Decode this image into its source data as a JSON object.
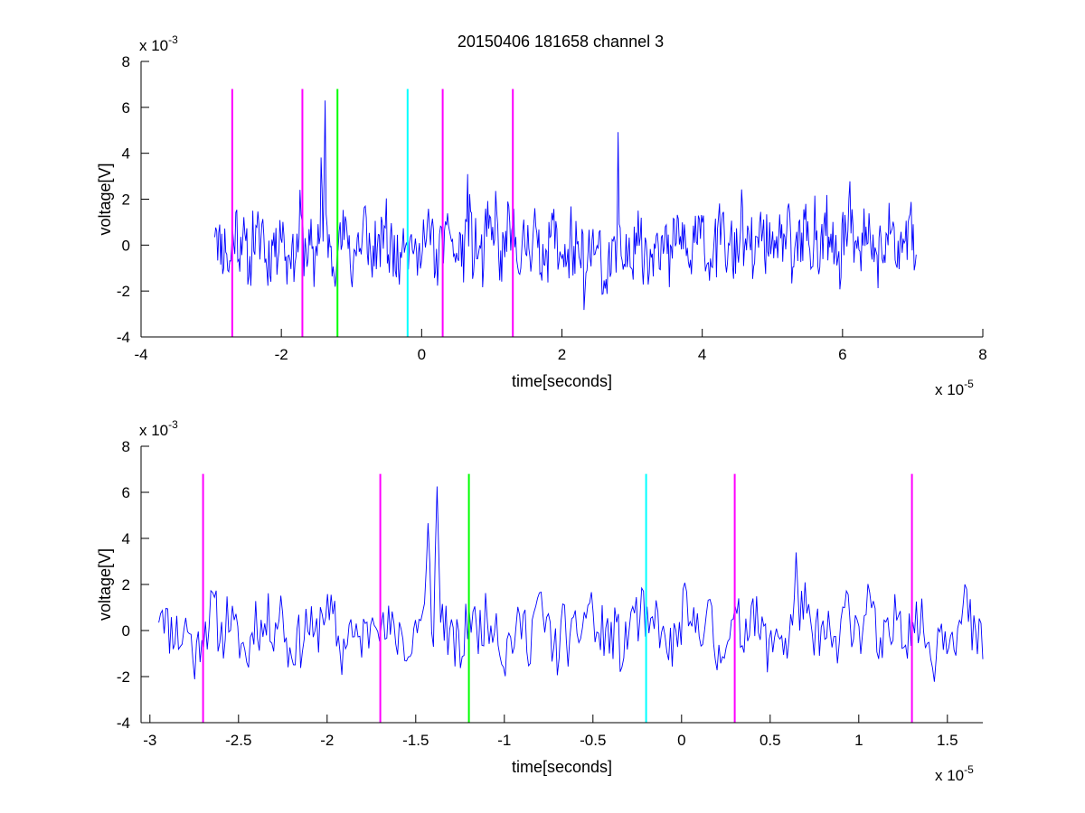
{
  "figure": {
    "title": "20150406 181658 channel 3"
  },
  "chart_data": [
    {
      "type": "line",
      "title": "20150406 181658 channel 3",
      "xlabel": "time[seconds]",
      "ylabel": "voltage[V]",
      "x_multiplier_base": "x 10",
      "x_multiplier_exp": "-5",
      "y_multiplier_base": "x 10",
      "y_multiplier_exp": "-3",
      "xlim": [
        -4,
        8
      ],
      "ylim": [
        -4,
        8
      ],
      "x_ticks": [
        -4,
        -2,
        0,
        2,
        4,
        6,
        8
      ],
      "x_tick_labels": [
        "-4",
        "-2",
        "0",
        "2",
        "4",
        "6",
        "8"
      ],
      "y_ticks": [
        -4,
        -2,
        0,
        2,
        4,
        6,
        8
      ],
      "y_tick_labels": [
        "-4",
        "-2",
        "0",
        "2",
        "4",
        "6",
        "8"
      ],
      "grid": false,
      "signal": {
        "color": "#0000ff",
        "x_start": -2.95,
        "x_end": 7.05,
        "samples": 700,
        "seed": 11
      },
      "markers": [
        {
          "x": -2.7,
          "color": "#ff00ff",
          "y_top": 6.8
        },
        {
          "x": -1.7,
          "color": "#ff00ff",
          "y_top": 6.8
        },
        {
          "x": -1.2,
          "color": "#00ff00",
          "y_top": 6.8
        },
        {
          "x": -0.2,
          "color": "#00ffff",
          "y_top": 6.8
        },
        {
          "x": 0.3,
          "color": "#ff00ff",
          "y_top": 6.8
        },
        {
          "x": 1.3,
          "color": "#ff00ff",
          "y_top": 6.8
        }
      ]
    },
    {
      "type": "line",
      "title": "",
      "xlabel": "time[seconds]",
      "ylabel": "voltage[V]",
      "x_multiplier_base": "x 10",
      "x_multiplier_exp": "-5",
      "y_multiplier_base": "x 10",
      "y_multiplier_exp": "-3",
      "xlim": [
        -3.05,
        1.7
      ],
      "ylim": [
        -4,
        8
      ],
      "x_ticks": [
        -3,
        -2.5,
        -2,
        -1.5,
        -1,
        -0.5,
        0,
        0.5,
        1,
        1.5
      ],
      "x_tick_labels": [
        "-3",
        "-2.5",
        "-2",
        "-1.5",
        "-1",
        "-0.5",
        "0",
        "0.5",
        "1",
        "1.5"
      ],
      "y_ticks": [
        -4,
        -2,
        0,
        2,
        4,
        6,
        8
      ],
      "y_tick_labels": [
        "-4",
        "-2",
        "0",
        "2",
        "4",
        "6",
        "8"
      ],
      "grid": false,
      "signal": {
        "color": "#0000ff",
        "x_start": -2.95,
        "x_end": 1.7,
        "samples": 460,
        "seed": 11
      },
      "markers": [
        {
          "x": -2.7,
          "color": "#ff00ff",
          "y_top": 6.8
        },
        {
          "x": -1.7,
          "color": "#ff00ff",
          "y_top": 6.8
        },
        {
          "x": -1.2,
          "color": "#00ff00",
          "y_top": 6.8
        },
        {
          "x": -0.2,
          "color": "#00ffff",
          "y_top": 6.8
        },
        {
          "x": 0.3,
          "color": "#ff00ff",
          "y_top": 6.8
        },
        {
          "x": 1.3,
          "color": "#ff00ff",
          "y_top": 6.8
        }
      ]
    }
  ]
}
